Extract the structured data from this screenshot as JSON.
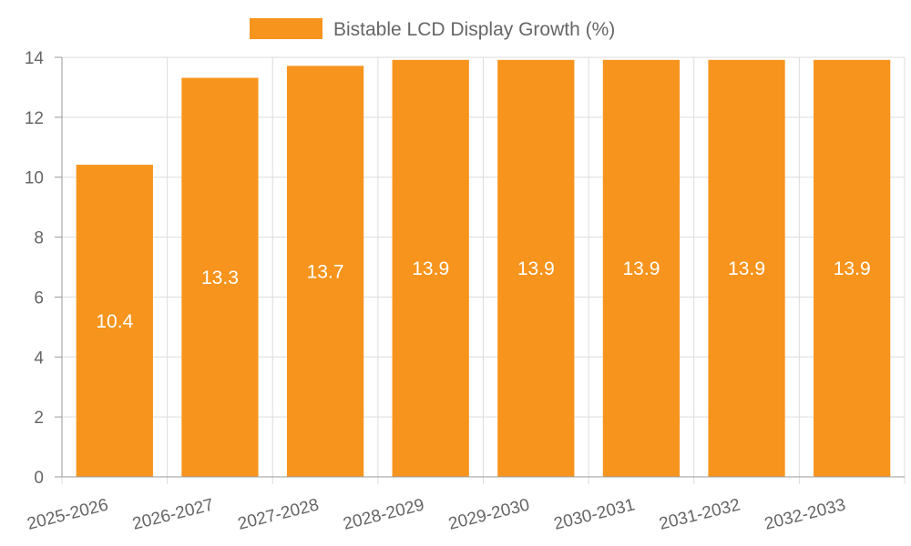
{
  "colors": {
    "bar_fill": "#f7941d",
    "bar_stroke": "#f7941d",
    "grid": "#dddddd",
    "axis": "#999999",
    "text": "#666666",
    "label_text": "#ffffff"
  },
  "chart_data": {
    "type": "bar",
    "title": "",
    "xlabel": "",
    "ylabel": "",
    "legend": [
      "Bistable LCD Display Growth (%)"
    ],
    "legend_position": "top-center",
    "categories": [
      "2025-2026",
      "2026-2027",
      "2027-2028",
      "2028-2029",
      "2029-2030",
      "2030-2031",
      "2031-2032",
      "2032-2033"
    ],
    "series": [
      {
        "name": "Bistable LCD Display Growth (%)",
        "values": [
          10.4,
          13.3,
          13.7,
          13.9,
          13.9,
          13.9,
          13.9,
          13.9
        ]
      }
    ],
    "data_labels": [
      "10.4",
      "13.3",
      "13.7",
      "13.9",
      "13.9",
      "13.9",
      "13.9",
      "13.9"
    ],
    "ylim": [
      0,
      14
    ],
    "yticks": [
      "0",
      "2",
      "4",
      "6",
      "8",
      "10",
      "12",
      "14"
    ],
    "ytick_values": [
      0,
      2,
      4,
      6,
      8,
      10,
      12,
      14
    ],
    "grid": true
  }
}
